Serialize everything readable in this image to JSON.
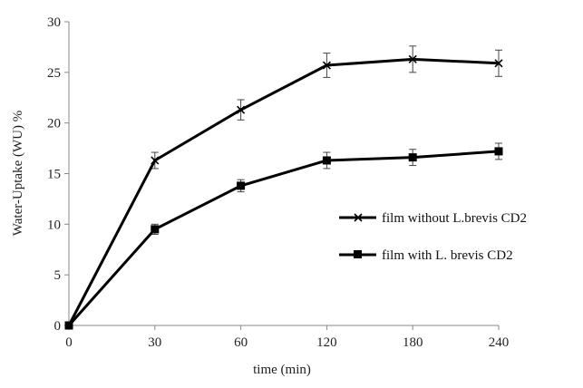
{
  "chart_data": {
    "type": "line",
    "title": "",
    "xlabel": "time (min)",
    "ylabel": "Water-Uptake (WU) %",
    "categories": [
      "0",
      "30",
      "60",
      "120",
      "180",
      "240"
    ],
    "ylim": [
      0,
      30
    ],
    "yticks": [
      "0",
      "5",
      "10",
      "15",
      "20",
      "25",
      "30"
    ],
    "grid": false,
    "legend_position": "right",
    "series": [
      {
        "name": "film without L.brevis CD2",
        "marker": "x",
        "color": "#000000",
        "values": [
          0,
          16.3,
          21.3,
          25.7,
          26.3,
          25.9
        ],
        "errors": [
          0,
          0.8,
          1.0,
          1.2,
          1.3,
          1.3
        ]
      },
      {
        "name": "film with L. brevis CD2",
        "marker": "square",
        "color": "#000000",
        "values": [
          0,
          9.5,
          13.8,
          16.3,
          16.6,
          17.2
        ],
        "errors": [
          0,
          0.5,
          0.6,
          0.8,
          0.8,
          0.8
        ]
      }
    ]
  }
}
